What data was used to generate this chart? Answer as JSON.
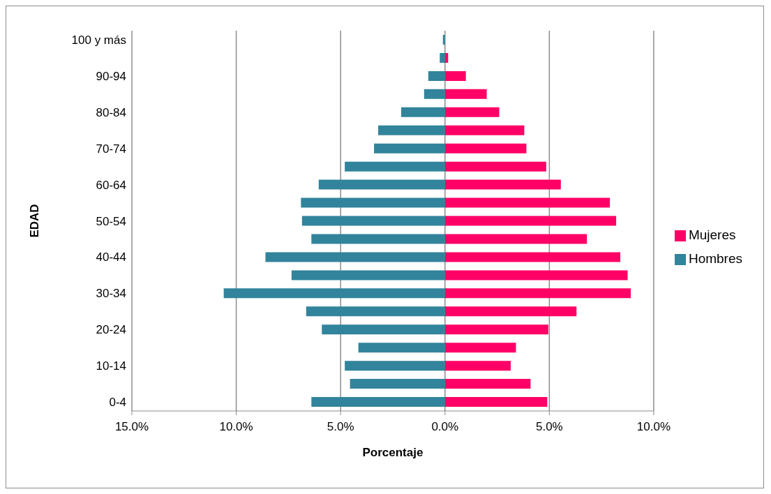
{
  "chart_data": {
    "type": "bar",
    "orientation": "horizontal",
    "stacked": true,
    "categories": [
      "100 y más",
      null,
      "90-94",
      null,
      "80-84",
      null,
      "70-74",
      null,
      "60-64",
      null,
      "50-54",
      null,
      "40-44",
      null,
      "30-34",
      null,
      "20-24",
      null,
      "10-14",
      null,
      "0-4"
    ],
    "series": [
      {
        "name": "Mujeres",
        "color": "#ff0066",
        "values": [
          null,
          0.15,
          1.0,
          2.0,
          2.6,
          3.8,
          3.9,
          4.85,
          5.55,
          7.9,
          8.2,
          6.8,
          8.4,
          8.75,
          8.9,
          6.3,
          4.95,
          3.4,
          3.15,
          4.1,
          4.9
        ]
      },
      {
        "name": "Hombres",
        "color": "#31849b",
        "values": [
          -0.1,
          -0.25,
          -0.8,
          -1.0,
          -2.1,
          -3.2,
          -3.4,
          -4.8,
          -6.05,
          -6.9,
          -6.85,
          -6.4,
          -8.6,
          -7.35,
          -10.6,
          -6.65,
          -5.9,
          -4.15,
          -4.8,
          -4.55,
          -6.4
        ]
      }
    ],
    "xlim": [
      -15,
      10
    ],
    "xticks": [
      {
        "value": -15,
        "label": "15.0%"
      },
      {
        "value": -10,
        "label": "10.0%"
      },
      {
        "value": -5,
        "label": "5.0%"
      },
      {
        "value": 0,
        "label": "0.0%"
      },
      {
        "value": 5,
        "label": "5.0%"
      },
      {
        "value": 10,
        "label": "10.0%"
      }
    ],
    "xlabel": "Porcentaje",
    "ylabel": "EDAD",
    "grid": "x",
    "legend": "right"
  }
}
